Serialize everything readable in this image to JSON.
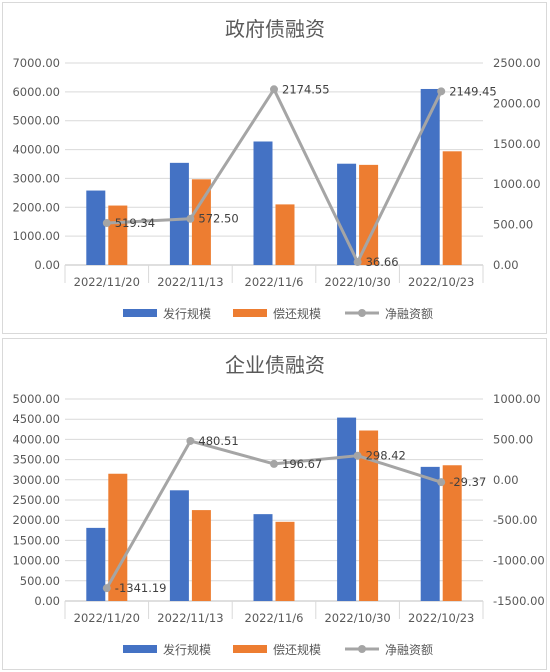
{
  "chart_data": [
    {
      "type": "bar",
      "title": "政府债融资",
      "categories": [
        "2022/11/20",
        "2022/11/13",
        "2022/11/6",
        "2022/10/30",
        "2022/10/23"
      ],
      "series": [
        {
          "name": "发行规模",
          "type": "bar",
          "axis": "left",
          "color": "#4472c4",
          "values": [
            2580,
            3540,
            4280,
            3510,
            6100
          ]
        },
        {
          "name": "偿还规模",
          "type": "bar",
          "axis": "left",
          "color": "#ed7d31",
          "values": [
            2060,
            2970,
            2100,
            3470,
            3940
          ]
        },
        {
          "name": "净融资额",
          "type": "line",
          "axis": "right",
          "color": "#a5a5a5",
          "values": [
            519.34,
            572.5,
            2174.55,
            36.66,
            2149.45
          ],
          "labels": [
            "519.34",
            "572.50",
            "2174.55",
            "36.66",
            "2149.45"
          ]
        }
      ],
      "y_left": {
        "min": 0,
        "max": 7000,
        "step": 1000,
        "ticks": [
          "0.00",
          "1000.00",
          "2000.00",
          "3000.00",
          "4000.00",
          "5000.00",
          "6000.00",
          "7000.00"
        ]
      },
      "y_right": {
        "min": 0,
        "max": 2500,
        "step": 500,
        "ticks": [
          "0.00",
          "500.00",
          "1000.00",
          "1500.00",
          "2000.00",
          "2500.00"
        ]
      },
      "grid": true,
      "legend": "bottom"
    },
    {
      "type": "bar",
      "title": "企业债融资",
      "categories": [
        "2022/11/20",
        "2022/11/13",
        "2022/11/6",
        "2022/10/30",
        "2022/10/23"
      ],
      "series": [
        {
          "name": "发行规模",
          "type": "bar",
          "axis": "left",
          "color": "#4472c4",
          "values": [
            1810,
            2740,
            2150,
            4540,
            3320
          ]
        },
        {
          "name": "偿还规模",
          "type": "bar",
          "axis": "left",
          "color": "#ed7d31",
          "values": [
            3150,
            2250,
            1960,
            4220,
            3360
          ]
        },
        {
          "name": "净融资额",
          "type": "line",
          "axis": "right",
          "color": "#a5a5a5",
          "values": [
            -1341.19,
            480.51,
            196.67,
            298.42,
            -29.37
          ],
          "labels": [
            "-1341.19",
            "480.51",
            "196.67",
            "298.42",
            "-29.37"
          ]
        }
      ],
      "y_left": {
        "min": 0,
        "max": 5000,
        "step": 500,
        "ticks": [
          "0.00",
          "500.00",
          "1000.00",
          "1500.00",
          "2000.00",
          "2500.00",
          "3000.00",
          "3500.00",
          "4000.00",
          "4500.00",
          "5000.00"
        ]
      },
      "y_right": {
        "min": -1500,
        "max": 1000,
        "step": 500,
        "ticks": [
          "-1500.00",
          "-1000.00",
          "-500.00",
          "0.00",
          "500.00",
          "1000.00"
        ]
      },
      "grid": true,
      "legend": "bottom"
    }
  ]
}
